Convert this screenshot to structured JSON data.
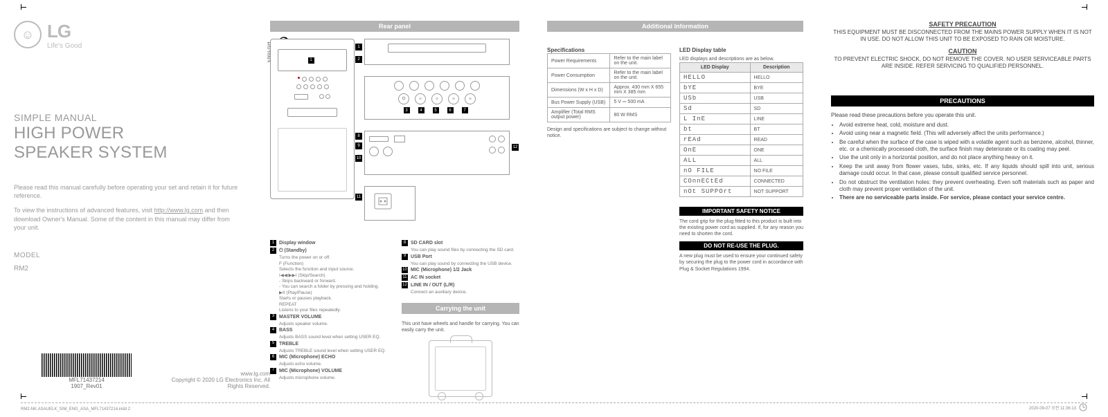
{
  "brand": {
    "name": "LG",
    "tagline": "Life's Good"
  },
  "lang_label": "ENGLISH",
  "manual": {
    "simple": "SIMPLE MANUAL",
    "title_l1": "HIGH POWER",
    "title_l2": "SPEAKER SYSTEM",
    "intro_p1": "Please read this manual carefully before operating your set and retain it for future reference.",
    "intro_p2_a": "To view the instructions of advanced features, visit ",
    "intro_link": "http://www.lg.com",
    "intro_p2_b": " and then download Owner's Manual. Some of the content in this manual may differ from your unit.",
    "model_label": "MODEL",
    "model_value": "RM2",
    "barcode_num": "MFL71437214",
    "barcode_rev": "1907_Rev01",
    "site": "www.lg.com",
    "copyright": "Copyright © 2020 LG Electronics Inc. All Rights Reserved."
  },
  "rear": {
    "header": "Rear panel",
    "legend": [
      {
        "n": "1",
        "t": "Display window"
      },
      {
        "n": "2",
        "t": "⏻ (Standby)",
        "s": [
          "Turns the power on or off.",
          "F (Function)",
          "Selects the function and input source.",
          "I◀◀/▶▶I (Skip/Search)",
          "- Skips backward or forward.",
          "- You can search a folder by pressing and holding.",
          "▶II (Play/Pause)",
          "Starts or pauses playback.",
          "REPEAT",
          "Listens to your files repeatedly."
        ]
      },
      {
        "n": "3",
        "t": "MASTER VOLUME",
        "s": [
          "Adjusts speaker volume."
        ]
      },
      {
        "n": "4",
        "t": "BASS",
        "s": [
          "Adjusts BASS sound level when setting USER EQ."
        ]
      },
      {
        "n": "5",
        "t": "TREBLE",
        "s": [
          "Adjusts TREBLE sound level when setting USER EQ."
        ]
      },
      {
        "n": "6",
        "t": "MIC (Microphone) ECHO",
        "s": [
          "Adjusts echo volume."
        ]
      },
      {
        "n": "7",
        "t": "MIC (Microphone) VOLUME",
        "s": [
          "Adjusts microphone volume."
        ]
      }
    ],
    "legend_r": [
      {
        "n": "8",
        "t": "SD CARD slot",
        "s": [
          "You can play sound files by connecting the SD card."
        ]
      },
      {
        "n": "9",
        "t": "USB Port",
        "s": [
          "You can play sound by connecting the USB device."
        ]
      },
      {
        "n": "10",
        "t": "MIC (Microphone) 1/2 Jack"
      },
      {
        "n": "11",
        "t": "AC IN socket"
      },
      {
        "n": "12",
        "t": "LINE IN / OUT (L/R)",
        "s": [
          "Connect an auxiliary device."
        ]
      }
    ]
  },
  "carry": {
    "header": "Carrying the unit",
    "text": "This unit have wheels and handle for carrying. You can easily carry the unit."
  },
  "addl": {
    "header": "Additional Information",
    "spec_title": "Specifications",
    "specs": [
      [
        "Power Requirements",
        "Refer to the main label on the unit."
      ],
      [
        "Power Consumption",
        "Refer to the main label on the unit."
      ],
      [
        "Dimensions (W x H x D)",
        "Approx. 430 mm X 655 mm X 385 mm"
      ],
      [
        "Bus Power Supply (USB)",
        "5 V ⎓ 500 mA"
      ],
      [
        "Amplifier (Total RMS output power)",
        "80 W RMS"
      ]
    ],
    "spec_note": "Design and specifications are subject to change without notice.",
    "led_title": "LED Display table",
    "led_sub": "LED displays and descriptions are as below.",
    "led_headers": [
      "LED Display",
      "Description"
    ],
    "led_rows": [
      [
        "HELLO",
        "HELLO"
      ],
      [
        "bYE",
        "BYE"
      ],
      [
        "USb",
        "USB"
      ],
      [
        "Sd",
        "SD"
      ],
      [
        "L InE",
        "LINE"
      ],
      [
        "bt",
        "BT"
      ],
      [
        "rEAd",
        "READ"
      ],
      [
        "OnE",
        "ONE"
      ],
      [
        "ALL",
        "ALL"
      ],
      [
        "nO FILE",
        "NO FILE"
      ],
      [
        "COnnECtEd",
        "CONNECTED"
      ],
      [
        "nOt SUPPOrt",
        "NOT SUPPORT"
      ]
    ],
    "notice_hdr": "IMPORTANT SAFETY NOTICE",
    "notice_txt": "The cord grip for the plug fitted to this product is built into the existing power cord as supplied. If, for any reason you need to shorten the cord.",
    "reuse_hdr": "DO NOT RE-USE THE PLUG.",
    "reuse_txt": "A new plug must be used to ensure your continued safety by securing the plug to the power cord in accordance with Plug & Socket Regulations 1994."
  },
  "safety": {
    "sp_title": "SAFETY PRECAUTION",
    "sp_text": "THIS EQUIPMENT MUST BE DISCONNECTED FROM THE MAINS POWER SUPPLY WHEN IT IS NOT IN USE. DO NOT ALLOW THIS UNIT TO BE EXPOSED TO RAIN OR MOISTURE.",
    "c_title": "CAUTION",
    "c_text": "TO PREVENT ELECTRIC SHOCK, DO NOT REMOVE THE COVER. NO USER SERVICEABLE PARTS ARE INSIDE. REFER SERVICING TO QUALIFIED PERSONNEL.",
    "p_title": "PRECAUTIONS",
    "p_intro": "Please read these precautions before you operate this unit.",
    "p_items": [
      "Avoid extreme heat, cold, moisture and dust.",
      "Avoid using near a magnetic field. (This will adversely affect the units performance.)",
      "Be careful when the surface of the case is wiped with a volatile agent such as benzene, alcohol, thinner, etc. or a chemically processed cloth, the surface finish may deteriorate or its coating may peel.",
      "Use the unit only in a horizontal position, and do not place anything heavy on it.",
      "Keep the unit away from flower vases, tubs, sinks, etc. If any liquids should spill into unit, serious damage could occur. In that case, please consult qualified service personnel.",
      "Do not obstruct the ventilation holes: they prevent overheating. Even soft materials such as paper and cloth may prevent proper ventilation of the unit."
    ],
    "p_bold": "There are no serviceable parts inside. For service, please contact your service centre."
  },
  "footer": {
    "left": "RM2-NK.ASAUELK_SIM_ENG_ASA_MFL71437214.indd   2",
    "right": "2020-09-07    오전 11:36:13"
  }
}
